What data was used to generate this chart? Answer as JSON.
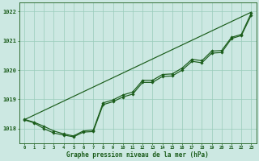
{
  "xlabel": "Graphe pression niveau de la mer (hPa)",
  "xlim_min": -0.5,
  "xlim_max": 23.5,
  "ylim_min": 1017.5,
  "ylim_max": 1022.3,
  "yticks": [
    1018,
    1019,
    1020,
    1021,
    1022
  ],
  "xticks": [
    0,
    1,
    2,
    3,
    4,
    5,
    6,
    7,
    8,
    9,
    10,
    11,
    12,
    13,
    14,
    15,
    16,
    17,
    18,
    19,
    20,
    21,
    22,
    23
  ],
  "bg_color": "#cce8e2",
  "grid_color": "#99ccbb",
  "line_color": "#1a5c1a",
  "series_straight_y": [
    1018.3,
    1018.46,
    1018.62,
    1018.78,
    1018.94,
    1019.1,
    1019.26,
    1019.42,
    1019.58,
    1019.74,
    1019.9,
    1020.06,
    1020.22,
    1020.38,
    1020.54,
    1020.7,
    1020.86,
    1021.02,
    1021.18,
    1021.34,
    1021.5,
    1021.66,
    1021.82,
    1021.98
  ],
  "series_wavy1_y": [
    1018.3,
    1018.2,
    1018.0,
    1017.85,
    1017.78,
    1017.72,
    1017.88,
    1017.9,
    1018.82,
    1018.92,
    1019.08,
    1019.18,
    1019.58,
    1019.58,
    1019.78,
    1019.8,
    1020.0,
    1020.3,
    1020.25,
    1020.58,
    1020.6,
    1021.08,
    1021.18,
    1021.88
  ],
  "series_wavy2_y": [
    1018.32,
    1018.22,
    1018.08,
    1017.92,
    1017.82,
    1017.75,
    1017.92,
    1017.95,
    1018.88,
    1018.98,
    1019.15,
    1019.25,
    1019.65,
    1019.65,
    1019.85,
    1019.87,
    1020.07,
    1020.37,
    1020.32,
    1020.65,
    1020.67,
    1021.12,
    1021.22,
    1021.95
  ]
}
